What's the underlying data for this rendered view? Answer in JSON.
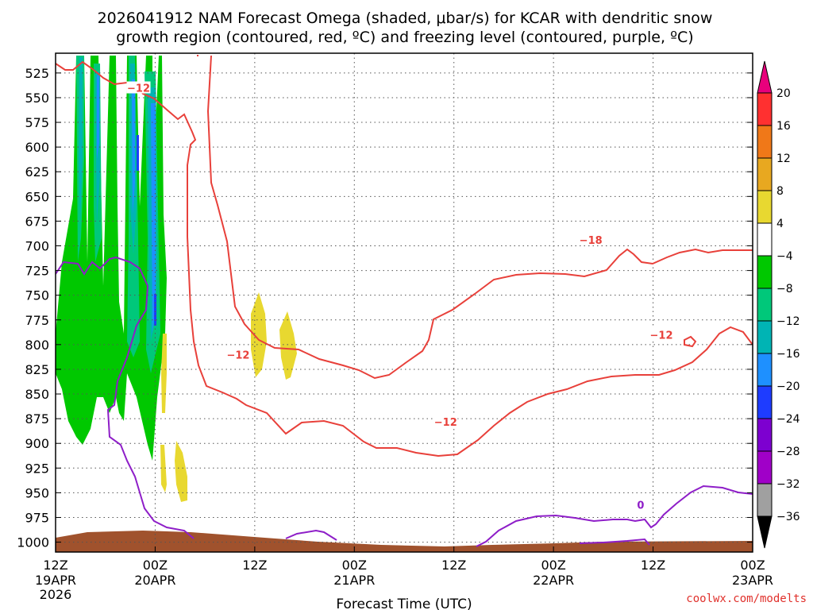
{
  "title_line1": "2026041912 NAM Forecast Omega (shaded, μbar/s) for KCAR with dendritic snow",
  "title_line2": "growth region (contoured, red, ºC) and freezing level (contoured, purple, ºC)",
  "credit": "coolwx.com/modelts",
  "chart_data": {
    "type": "heatmap",
    "title": "2026041912 NAM Forecast Omega (shaded, μbar/s) for KCAR with dendritic snow growth region (contoured, red, ºC) and freezing level (contoured, purple, ºC)",
    "xlabel": "Forecast Time (UTC)",
    "ylabel": "",
    "x_ticks": [
      {
        "hour": 0,
        "label": "12Z",
        "date": "19APR",
        "year": "2026"
      },
      {
        "hour": 12,
        "label": "00Z",
        "date": "20APR",
        "year": ""
      },
      {
        "hour": 24,
        "label": "12Z",
        "date": "",
        "year": ""
      },
      {
        "hour": 36,
        "label": "00Z",
        "date": "21APR",
        "year": ""
      },
      {
        "hour": 48,
        "label": "12Z",
        "date": "",
        "year": ""
      },
      {
        "hour": 60,
        "label": "00Z",
        "date": "22APR",
        "year": ""
      },
      {
        "hour": 72,
        "label": "12Z",
        "date": "",
        "year": ""
      },
      {
        "hour": 84,
        "label": "00Z",
        "date": "23APR",
        "year": ""
      }
    ],
    "x_range_hours": [
      0,
      84
    ],
    "y_ticks": [
      "525",
      "550",
      "575",
      "600",
      "625",
      "650",
      "675",
      "700",
      "725",
      "750",
      "775",
      "800",
      "825",
      "850",
      "875",
      "900",
      "925",
      "950",
      "975",
      "1000"
    ],
    "y_range_mb": [
      505,
      1010
    ],
    "y_inverted": true,
    "grid": "dotted",
    "colorbar": {
      "labels": [
        "20",
        "16",
        "12",
        "8",
        "4",
        "−4",
        "−8",
        "−12",
        "−16",
        "−20",
        "−24",
        "−28",
        "−32",
        "−36"
      ],
      "colors": [
        "#e8007c",
        "#ff3030",
        "#f07818",
        "#e8a820",
        "#e8d830",
        "#ffffff",
        "#00c800",
        "#00c87a",
        "#00b4b4",
        "#1e90ff",
        "#1e3cff",
        "#7d00d0",
        "#a000c8",
        "#a0a0a0",
        "#000000"
      ]
    },
    "contour_labels": [
      {
        "text": "−12",
        "hour": 10.0,
        "p": 540,
        "color": "#e8403a"
      },
      {
        "text": "−12",
        "hour": 22.0,
        "p": 810,
        "color": "#e8403a"
      },
      {
        "text": "−12",
        "hour": 47.0,
        "p": 878,
        "color": "#e8403a"
      },
      {
        "text": "−18",
        "hour": 64.5,
        "p": 694,
        "color": "#e8403a"
      },
      {
        "text": "−12",
        "hour": 73.0,
        "p": 790,
        "color": "#e8403a"
      },
      {
        "text": "0",
        "hour": 70.5,
        "p": 962,
        "color": "#8e1ec8"
      }
    ]
  }
}
